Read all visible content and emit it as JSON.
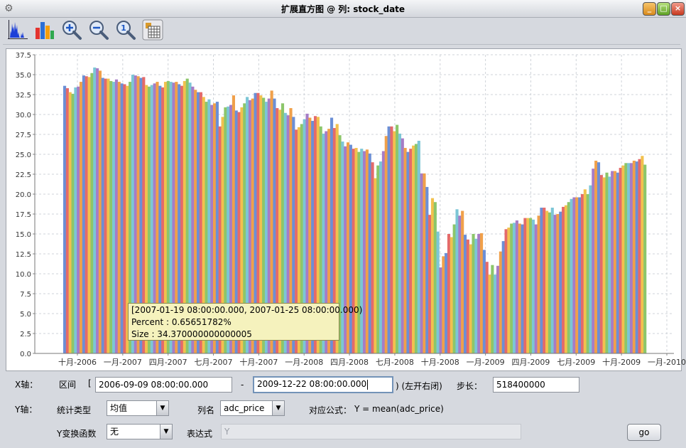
{
  "window": {
    "title": "扩展直方图 @ 列: stock_date",
    "icon": "gear-icon",
    "buttons": [
      "minimize-icon",
      "maximize-icon",
      "close-icon"
    ]
  },
  "toolbar": {
    "items": [
      "histogram-icon",
      "bar-chart-icon",
      "zoom-in-icon",
      "zoom-out-icon",
      "zoom-reset-icon",
      "table-icon"
    ]
  },
  "chart_data": {
    "type": "bar",
    "y_ticks": [
      "0.0",
      "2.5",
      "5.0",
      "7.5",
      "10.0",
      "12.5",
      "15.0",
      "17.5",
      "20.0",
      "22.5",
      "25.0",
      "27.5",
      "30.0",
      "32.5",
      "35.0",
      "37.5"
    ],
    "x_ticks": [
      "十月-2006",
      "一月-2007",
      "四月-2007",
      "七月-2007",
      "十月-2007",
      "一月-2008",
      "四月-2008",
      "七月-2008",
      "十月-2008",
      "一月-2009",
      "四月-2009",
      "七月-2009",
      "十月-2009",
      "一月-2010"
    ],
    "ylim": [
      0,
      37.5
    ],
    "grid": true,
    "colors": [
      "#6b8fd6",
      "#e46a6a",
      "#f2c14e",
      "#8cc66a",
      "#7cc6d6",
      "#a67cc6",
      "#f0a04a"
    ],
    "values": [
      33.6,
      33.3,
      32.8,
      32.6,
      33.4,
      33.5,
      34.1,
      34.9,
      34.8,
      34.7,
      35.2,
      35.9,
      35.8,
      35.5,
      34.6,
      34.5,
      34.5,
      34.2,
      34.1,
      34.4,
      34.1,
      33.9,
      33.8,
      33.6,
      34.1,
      35.0,
      34.9,
      34.8,
      34.6,
      34.7,
      33.7,
      33.5,
      33.7,
      33.9,
      34.1,
      33.6,
      33.4,
      34.1,
      34.2,
      34.1,
      34.0,
      34.1,
      33.8,
      33.6,
      34.2,
      34.5,
      34.0,
      33.5,
      33.1,
      32.8,
      32.8,
      32.2,
      31.6,
      31.9,
      31.2,
      31.4,
      31.6,
      28.5,
      29.7,
      30.9,
      31.0,
      31.2,
      32.4,
      30.5,
      30.3,
      30.9,
      31.4,
      32.2,
      31.8,
      32.0,
      32.7,
      32.7,
      32.4,
      32.1,
      31.6,
      32.0,
      33.0,
      32.0,
      30.8,
      30.6,
      31.4,
      30.2,
      29.9,
      30.8,
      29.7,
      28.1,
      28.4,
      28.8,
      29.4,
      30.1,
      29.6,
      29.2,
      29.8,
      29.7,
      28.5,
      27.6,
      27.9,
      28.2,
      29.6,
      28.3,
      28.8,
      27.4,
      26.6,
      26.0,
      26.5,
      26.2,
      25.7,
      25.8,
      25.3,
      25.7,
      25.4,
      25.6,
      25.1,
      24.0,
      22.0,
      23.6,
      24.1,
      25.4,
      27.3,
      28.5,
      28.5,
      27.9,
      28.7,
      27.6,
      27.0,
      25.8,
      25.3,
      25.7,
      26.1,
      26.3,
      26.7,
      22.6,
      22.6,
      20.9,
      17.4,
      19.5,
      19.0,
      15.3,
      10.8,
      12.2,
      12.6,
      15.0,
      14.6,
      16.2,
      18.1,
      17.3,
      17.9,
      14.9,
      14.3,
      13.7,
      15.0,
      14.4,
      15.0,
      15.1,
      13.0,
      11.5,
      9.9,
      11.1,
      9.9,
      11.0,
      12.8,
      14.1,
      15.6,
      15.8,
      16.3,
      16.4,
      16.7,
      16.3,
      16.2,
      17.0,
      17.0,
      17.0,
      16.8,
      16.2,
      17.3,
      18.3,
      18.3,
      17.9,
      17.7,
      18.3,
      17.4,
      17.5,
      17.8,
      18.4,
      18.6,
      19.0,
      19.4,
      19.6,
      19.6,
      19.6,
      20.0,
      20.6,
      20.0,
      21.1,
      23.2,
      24.2,
      24.0,
      22.4,
      22.1,
      22.7,
      22.2,
      22.9,
      22.9,
      22.7,
      23.3,
      23.6,
      23.9,
      23.9,
      23.9,
      24.2,
      24.1,
      24.4,
      24.8,
      23.7
    ]
  },
  "tooltip": {
    "line1": "[2007-01-19 08:00:00.000, 2007-01-25 08:00:00.000)",
    "line2": "Percent : 0.65651782%",
    "line3": "Size : 34.370000000000005"
  },
  "controls": {
    "x_axis_label": "X轴：",
    "range_label": "区间",
    "bracket_open": "[",
    "start": "2006-09-09 08:00:00.000",
    "dash": "-",
    "end": "2009-12-22 08:00:00.000",
    "interval_note": ") (左开右闭)",
    "step_label": "步长：",
    "step": "518400000",
    "y_axis_label": "Y轴：",
    "stat_label": "统计类型",
    "stat_value": "均值",
    "col_label": "列名",
    "col_value": "adc_price",
    "formula_label": "对应公式：",
    "formula": "Y = mean(adc_price)",
    "transform_label": "Y变换函数",
    "transform_value": "无",
    "expr_label": "表达式",
    "expr_placeholder": "Y",
    "go": "go"
  }
}
